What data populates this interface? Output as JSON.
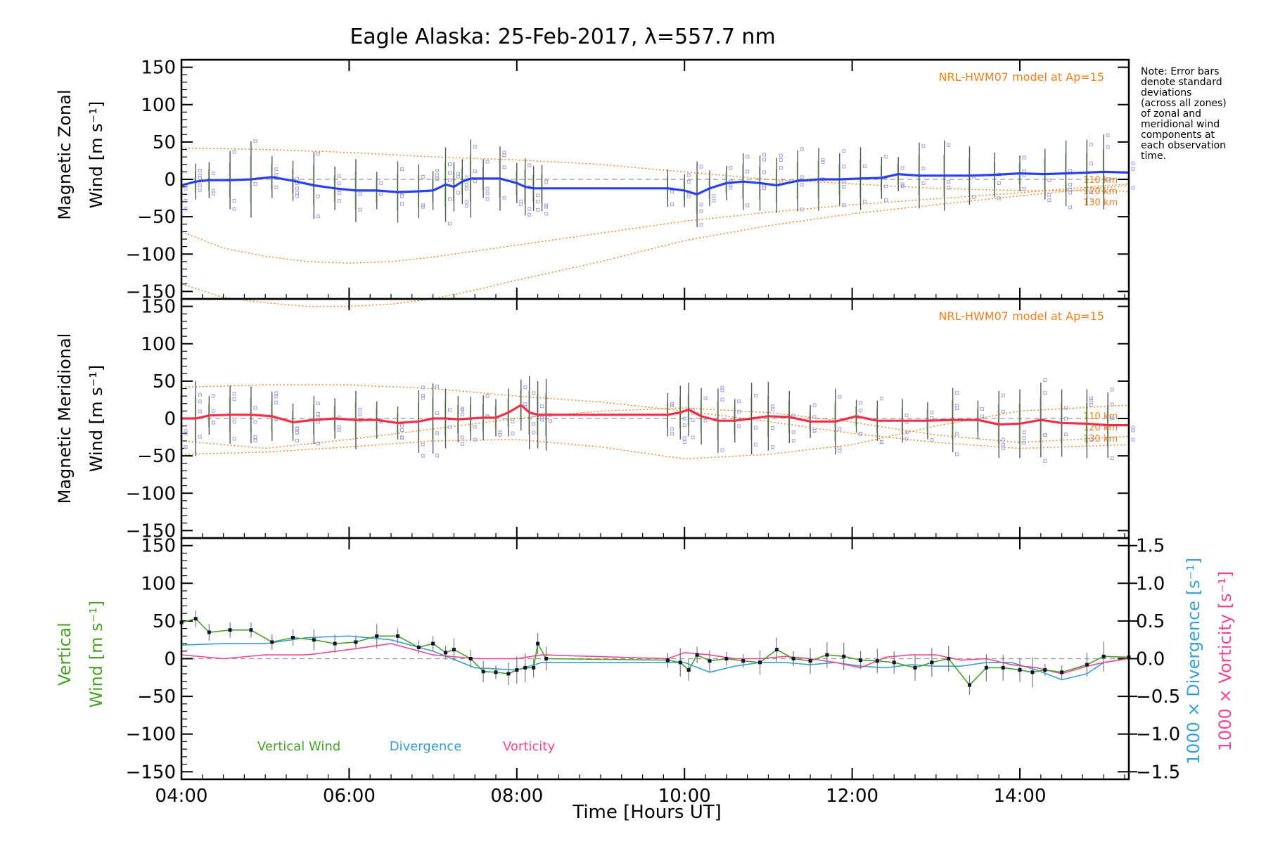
{
  "title": "Eagle Alaska: 25-Feb-2017, λ=557.7 nm",
  "note_lines": [
    "Note: Error bars",
    "denote standard",
    "deviations",
    "(across all zones)",
    "of zonal and",
    "meridional wind",
    "components at",
    "each observation",
    "time."
  ],
  "model_label": "NRL-HWM07 model at Ap=15",
  "altitude_labels": [
    "110 km",
    "120 km",
    "130 km"
  ],
  "xlabel": "Time [Hours UT]",
  "x_ticks": [
    "04:00",
    "06:00",
    "08:00",
    "10:00",
    "12:00",
    "14:00"
  ],
  "y_ticks": [
    "150",
    "100",
    "50",
    "0",
    "−50",
    "−100",
    "−150"
  ],
  "y2_ticks": [
    "1.5",
    "1.0",
    "0.5",
    "0.0",
    "−0.5",
    "−1.0",
    "−1.5"
  ],
  "ylabel_zonal": [
    "Magnetic Zonal",
    "Wind [m s⁻¹]"
  ],
  "ylabel_meridional": [
    "Magnetic Meridional",
    "Wind [m s⁻¹]"
  ],
  "ylabel_vertical": [
    "Vertical",
    "Wind [m s⁻¹]"
  ],
  "ylabel_divergence": "1000 × Divergence [s⁻¹]",
  "ylabel_vorticity": "1000 × Vorticity [s⁻¹]",
  "legend": [
    "Vertical Wind",
    "Divergence",
    "Vorticity"
  ],
  "colors": {
    "zonal": "#2a3ff0",
    "meridional": "#f0304a",
    "vertical": "#4aa02a",
    "divergence": "#3a9fd0",
    "vorticity": "#f04890",
    "model": "#f08020",
    "errorbar": "#555555",
    "zone": "#a0a0e0"
  },
  "chart_data": [
    {
      "type": "line",
      "panel": "zonal",
      "xlim": [
        4.0,
        15.3
      ],
      "ylim": [
        -160,
        160
      ],
      "series": [
        {
          "x": [
            4.0,
            4.17,
            4.33,
            4.58,
            4.83,
            5.08,
            5.33,
            5.58,
            5.83,
            6.08,
            6.33,
            6.58,
            6.83,
            7.0,
            7.15,
            7.25,
            7.35,
            7.45,
            7.6,
            7.8,
            8.0,
            8.1,
            8.2,
            8.3,
            9.8,
            10.0,
            10.15,
            10.3,
            10.5,
            10.7,
            10.9,
            11.1,
            11.35,
            11.6,
            11.85,
            12.1,
            12.35,
            12.55,
            12.8,
            13.1,
            13.4,
            13.7,
            14.0,
            14.3,
            14.55,
            14.8,
            15.0,
            15.3
          ],
          "y": [
            -8,
            -3,
            -1,
            -1,
            0,
            3,
            -2,
            -8,
            -12,
            -15,
            -15,
            -17,
            -16,
            -15,
            -7,
            -10,
            -3,
            1,
            1,
            1,
            -5,
            -10,
            -12,
            -12,
            -12,
            -15,
            -20,
            -12,
            -5,
            -3,
            -5,
            -8,
            -2,
            0,
            0,
            1,
            2,
            7,
            5,
            5,
            5,
            6,
            8,
            7,
            8,
            9,
            10,
            9
          ]
        }
      ],
      "model_curves": [
        {
          "x": [
            4.0,
            5.0,
            6.0,
            7.0,
            8.0,
            9.0,
            10.0,
            11.0,
            12.0,
            13.0,
            14.0,
            15.3
          ],
          "y": [
            42,
            40,
            36,
            30,
            26,
            20,
            10,
            0,
            -6,
            -12,
            -15,
            -16
          ]
        },
        {
          "x": [
            4.0,
            4.5,
            5.0,
            5.5,
            6.0,
            6.5,
            7.0,
            7.5,
            8.0,
            9.0,
            10.0,
            11.0,
            12.0,
            13.0,
            14.0,
            15.3
          ],
          "y": [
            -70,
            -92,
            -103,
            -110,
            -112,
            -110,
            -104,
            -96,
            -88,
            -72,
            -56,
            -44,
            -34,
            -26,
            -18,
            -6
          ]
        },
        {
          "x": [
            4.0,
            4.5,
            5.0,
            5.5,
            6.0,
            6.5,
            7.0,
            7.5,
            8.0,
            9.0,
            10.0,
            11.0,
            12.0,
            13.0,
            14.0,
            15.3
          ],
          "y": [
            -140,
            -158,
            -165,
            -170,
            -170,
            -167,
            -160,
            -148,
            -135,
            -110,
            -82,
            -62,
            -46,
            -34,
            -22,
            -8
          ]
        }
      ]
    },
    {
      "type": "line",
      "panel": "meridional",
      "xlim": [
        4.0,
        15.3
      ],
      "ylim": [
        -160,
        160
      ],
      "series": [
        {
          "x": [
            4.0,
            4.17,
            4.33,
            4.58,
            4.83,
            5.08,
            5.33,
            5.58,
            5.83,
            6.08,
            6.33,
            6.58,
            6.83,
            7.0,
            7.15,
            7.3,
            7.45,
            7.6,
            7.75,
            7.9,
            8.05,
            8.15,
            8.25,
            8.35,
            9.8,
            9.95,
            10.05,
            10.2,
            10.4,
            10.6,
            10.8,
            11.0,
            11.25,
            11.5,
            11.8,
            12.05,
            12.3,
            12.6,
            12.9,
            13.2,
            13.5,
            13.75,
            14.0,
            14.25,
            14.5,
            14.8,
            15.05,
            15.3
          ],
          "y": [
            0,
            0,
            4,
            5,
            5,
            3,
            -5,
            -2,
            0,
            -2,
            -2,
            -6,
            -4,
            0,
            0,
            -1,
            0,
            1,
            1,
            8,
            18,
            8,
            5,
            5,
            5,
            8,
            12,
            3,
            -3,
            -3,
            0,
            3,
            2,
            -4,
            -4,
            3,
            -3,
            -3,
            -3,
            -2,
            -2,
            -8,
            -7,
            -2,
            -6,
            -7,
            -9,
            -9
          ]
        }
      ],
      "model_curves": [
        {
          "x": [
            4.0,
            5.0,
            6.0,
            7.0,
            8.0,
            9.0,
            10.0,
            11.0,
            12.0,
            13.0,
            14.0,
            15.3
          ],
          "y": [
            -30,
            -40,
            -28,
            -14,
            0,
            10,
            14,
            8,
            -5,
            -22,
            -32,
            -24
          ]
        },
        {
          "x": [
            4.0,
            5.0,
            6.0,
            7.0,
            8.0,
            9.0,
            10.0,
            11.0,
            12.0,
            13.0,
            14.0,
            15.3
          ],
          "y": [
            42,
            45,
            45,
            40,
            30,
            22,
            10,
            -4,
            -20,
            -32,
            -40,
            -35
          ]
        },
        {
          "x": [
            4.0,
            5.0,
            6.0,
            7.0,
            8.0,
            9.0,
            10.0,
            11.0,
            12.0,
            13.0,
            14.0,
            15.3
          ],
          "y": [
            -48,
            -45,
            -38,
            -30,
            -28,
            -38,
            -54,
            -48,
            -35,
            -10,
            10,
            18
          ]
        }
      ]
    },
    {
      "type": "line",
      "panel": "vertical",
      "xlim": [
        4.0,
        15.3
      ],
      "ylim": [
        -160,
        160
      ],
      "y2lim": [
        -1.6,
        1.6
      ],
      "series": [
        {
          "name": "Vertical Wind",
          "x": [
            4.0,
            4.17,
            4.33,
            4.58,
            4.83,
            5.08,
            5.33,
            5.58,
            5.83,
            6.08,
            6.33,
            6.58,
            6.83,
            7.0,
            7.15,
            7.25,
            7.45,
            7.6,
            7.75,
            7.9,
            8.0,
            8.1,
            8.2,
            8.25,
            8.35,
            9.8,
            9.95,
            10.05,
            10.15,
            10.3,
            10.5,
            10.7,
            10.9,
            11.1,
            11.3,
            11.5,
            11.7,
            11.9,
            12.1,
            12.3,
            12.5,
            12.75,
            12.95,
            13.15,
            13.4,
            13.6,
            13.8,
            14.0,
            14.15,
            14.3,
            14.5,
            14.8,
            15.0,
            15.3
          ],
          "y": [
            48,
            53,
            35,
            38,
            38,
            22,
            28,
            25,
            20,
            22,
            30,
            30,
            15,
            20,
            8,
            12,
            0,
            -17,
            -18,
            -20,
            -15,
            -12,
            -12,
            20,
            0,
            -2,
            -5,
            -15,
            5,
            -3,
            0,
            -3,
            -5,
            12,
            0,
            -3,
            5,
            3,
            -2,
            -3,
            -5,
            -12,
            -5,
            0,
            -35,
            -12,
            -12,
            -15,
            -18,
            -15,
            -18,
            -8,
            3,
            2
          ]
        },
        {
          "name": "Divergence",
          "x": [
            4.0,
            4.5,
            5.0,
            5.5,
            6.0,
            6.5,
            7.0,
            7.5,
            8.0,
            8.3,
            9.8,
            10.0,
            10.3,
            10.6,
            10.9,
            11.2,
            11.5,
            11.8,
            12.1,
            12.4,
            12.7,
            13.0,
            13.3,
            13.6,
            13.9,
            14.2,
            14.5,
            14.8,
            15.0,
            15.3
          ],
          "y": [
            0.18,
            0.2,
            0.2,
            0.28,
            0.3,
            0.25,
            0.1,
            -0.12,
            -0.15,
            -0.05,
            -0.05,
            -0.05,
            -0.18,
            -0.1,
            -0.05,
            -0.05,
            -0.08,
            -0.05,
            -0.1,
            -0.12,
            -0.08,
            -0.1,
            -0.1,
            -0.05,
            -0.05,
            -0.15,
            -0.28,
            -0.2,
            -0.05,
            0.0
          ]
        },
        {
          "name": "Vorticity",
          "x": [
            4.0,
            4.5,
            5.0,
            5.5,
            6.0,
            6.5,
            7.0,
            7.5,
            8.0,
            8.3,
            9.8,
            10.0,
            10.3,
            10.6,
            10.9,
            11.2,
            11.5,
            11.8,
            12.1,
            12.4,
            12.7,
            13.0,
            13.3,
            13.6,
            13.9,
            14.2,
            14.5,
            14.8,
            15.0,
            15.3
          ],
          "y": [
            0.05,
            0.0,
            0.05,
            0.05,
            0.12,
            0.2,
            0.05,
            0.0,
            0.0,
            0.05,
            0.0,
            0.08,
            0.05,
            0.0,
            0.0,
            0.03,
            0.0,
            -0.05,
            -0.12,
            0.02,
            0.05,
            0.05,
            -0.02,
            0.0,
            -0.08,
            -0.12,
            -0.2,
            -0.1,
            -0.05,
            0.0
          ]
        }
      ],
      "vertical_series_axis": "left",
      "divergence_vorticity_axis": "right"
    }
  ]
}
